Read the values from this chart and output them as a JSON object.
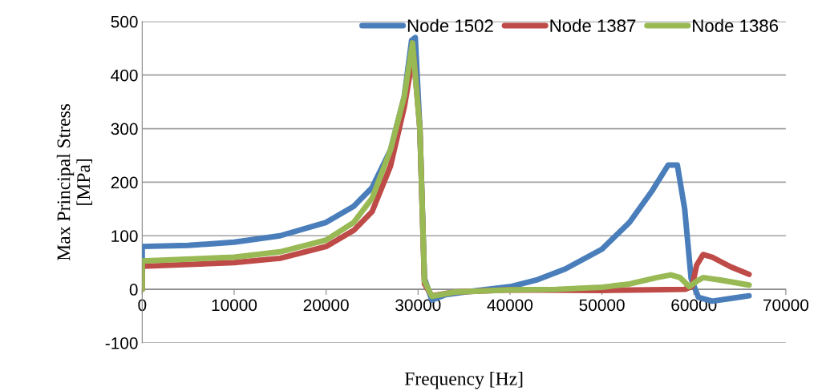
{
  "chart_data": {
    "type": "line",
    "xlabel": "Frequency [Hz]",
    "ylabel": "Max Principal Stress\n[MPa]",
    "xlim": [
      0,
      70000
    ],
    "xticks": [
      0,
      10000,
      20000,
      30000,
      40000,
      50000,
      60000,
      70000
    ],
    "ylim": [
      -100,
      500
    ],
    "yticks": [
      -100,
      0,
      100,
      200,
      300,
      400,
      500
    ],
    "grid": "y",
    "legend": "top right",
    "marker": "none",
    "line_style": "solid",
    "series": [
      {
        "name": "Node 1502",
        "color": "#4a7ebb",
        "x": [
          0,
          0,
          5000,
          10000,
          15000,
          20000,
          23000,
          25000,
          27000,
          28500,
          29300,
          29700,
          30200,
          30700,
          31500,
          33000,
          36000,
          40000,
          43000,
          46000,
          50000,
          53000,
          55500,
          57200,
          58200,
          59000,
          59700,
          60500,
          62000,
          64000,
          66000
        ],
        "values": [
          0,
          80,
          82,
          88,
          100,
          125,
          155,
          190,
          260,
          360,
          465,
          470,
          300,
          20,
          -20,
          -10,
          -3,
          5,
          18,
          38,
          75,
          125,
          185,
          232,
          232,
          150,
          20,
          -15,
          -22,
          -17,
          -12
        ]
      },
      {
        "name": "Node 1387",
        "color": "#be4b48",
        "x": [
          0,
          0,
          10000,
          15000,
          20000,
          23000,
          25000,
          27000,
          28500,
          29500,
          30200,
          30700,
          31500,
          34000,
          40000,
          50000,
          55000,
          59000,
          59800,
          60300,
          61000,
          62000,
          64000,
          66000
        ],
        "values": [
          0,
          43,
          50,
          58,
          80,
          110,
          145,
          230,
          340,
          440,
          300,
          10,
          -12,
          -5,
          -1,
          -2,
          -1,
          0,
          5,
          45,
          65,
          60,
          42,
          28
        ]
      },
      {
        "name": "Node 1386",
        "color": "#98b954",
        "x": [
          0,
          0,
          10000,
          15000,
          20000,
          23000,
          25000,
          27000,
          28500,
          29400,
          30200,
          30700,
          31500,
          34000,
          40000,
          45000,
          50000,
          53000,
          56000,
          57500,
          58500,
          59500,
          60300,
          61000,
          63000,
          66000
        ],
        "values": [
          0,
          53,
          60,
          70,
          92,
          125,
          170,
          260,
          360,
          460,
          300,
          15,
          -13,
          -5,
          -1,
          0,
          4,
          10,
          22,
          27,
          22,
          5,
          15,
          22,
          17,
          8
        ]
      }
    ]
  }
}
